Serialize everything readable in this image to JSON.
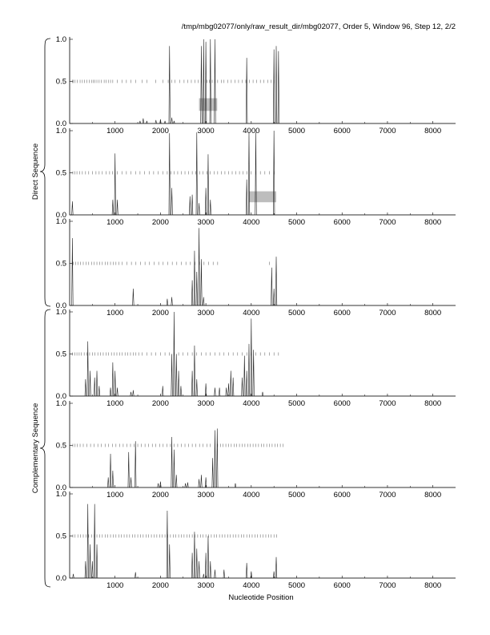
{
  "figure": {
    "header": "/tmp/mbg02077/only/raw_result_dir/mbg02077, Order 5, Window 96, Step 12, 2/2",
    "group_labels": [
      "Direct Sequence",
      "Complementary Sequence"
    ],
    "xlabel": "Nucleotide Position"
  },
  "chart_data": {
    "type": "line",
    "xlabel": "Nucleotide Position",
    "xlim": [
      0,
      8500
    ],
    "ylim": [
      0,
      1.0
    ],
    "xticks": [
      1000,
      2000,
      3000,
      4000,
      5000,
      6000,
      7000,
      8000
    ],
    "yticks": [
      0.0,
      0.5,
      1.0
    ],
    "ytick_labels": [
      "0.0",
      "0.5",
      "1.0"
    ],
    "grid": false,
    "panels": [
      {
        "group": "Direct Sequence",
        "peaks": [
          [
            1550,
            0.03
          ],
          [
            1620,
            0.06
          ],
          [
            1700,
            0.03
          ],
          [
            1900,
            0.04
          ],
          [
            2000,
            0.05
          ],
          [
            2100,
            0.03
          ],
          [
            2200,
            0.92
          ],
          [
            2250,
            0.07
          ],
          [
            2300,
            0.03
          ],
          [
            2900,
            0.92
          ],
          [
            2950,
            1.0
          ],
          [
            3000,
            0.97
          ],
          [
            3100,
            1.0
          ],
          [
            3200,
            1.0
          ],
          [
            3900,
            0.78
          ],
          [
            4500,
            0.88
          ],
          [
            4550,
            0.92
          ],
          [
            4600,
            0.86
          ]
        ],
        "ticks": [
          60,
          80,
          120,
          170,
          230,
          280,
          330,
          380,
          430,
          480,
          520,
          560,
          600,
          650,
          700,
          760,
          800,
          850,
          900,
          950,
          1050,
          1150,
          1250,
          1350,
          1450,
          1600,
          1700,
          1900,
          2050,
          2170,
          2250,
          2320,
          2420,
          2520,
          2600,
          2680,
          2760,
          2830,
          2900,
          2960,
          3020,
          3080,
          3140,
          3200,
          3260,
          3340,
          3400,
          3480,
          3560,
          3640,
          3720,
          3800,
          3880,
          3960,
          4040,
          4120,
          4200,
          4280,
          4360,
          4440,
          4500
        ],
        "shaded": [
          2850,
          3250,
          0.15,
          0.3
        ]
      },
      {
        "group": "Direct Sequence",
        "peaks": [
          [
            60,
            0.16
          ],
          [
            950,
            0.18
          ],
          [
            1000,
            0.73
          ],
          [
            1050,
            0.18
          ],
          [
            2200,
            0.97
          ],
          [
            2250,
            0.32
          ],
          [
            2650,
            0.22
          ],
          [
            2700,
            0.24
          ],
          [
            2800,
            0.98
          ],
          [
            2850,
            0.14
          ],
          [
            3000,
            0.32
          ],
          [
            3050,
            0.72
          ],
          [
            3100,
            0.18
          ],
          [
            3900,
            0.42
          ],
          [
            3950,
            0.98
          ],
          [
            4100,
            0.98
          ],
          [
            4500,
            1.0
          ]
        ],
        "ticks": [
          70,
          110,
          160,
          220,
          280,
          350,
          420,
          500,
          580,
          650,
          720,
          800,
          880,
          940,
          1050,
          1150,
          1250,
          1350,
          1450,
          1550,
          1650,
          1750,
          1850,
          1950,
          2050,
          2150,
          2230,
          2300,
          2380,
          2460,
          2540,
          2620,
          2700,
          2780,
          2860,
          2940,
          3020,
          3100,
          3180,
          3260,
          3340,
          3420,
          3500,
          3580,
          3660,
          3740,
          3820,
          3900,
          4000,
          4100,
          4200,
          4300,
          4400,
          4500
        ],
        "shaded": [
          3950,
          4550,
          0.15,
          0.28
        ]
      },
      {
        "group": "Direct Sequence",
        "peaks": [
          [
            60,
            0.8
          ],
          [
            1400,
            0.2
          ],
          [
            2150,
            0.08
          ],
          [
            2250,
            0.1
          ],
          [
            2700,
            0.3
          ],
          [
            2750,
            0.65
          ],
          [
            2800,
            0.4
          ],
          [
            2850,
            0.92
          ],
          [
            2900,
            0.55
          ],
          [
            2950,
            0.1
          ],
          [
            4450,
            0.45
          ],
          [
            4500,
            0.2
          ],
          [
            4550,
            0.58
          ]
        ],
        "ticks": [
          80,
          130,
          180,
          240,
          300,
          360,
          420,
          480,
          540,
          600,
          660,
          720,
          780,
          840,
          900,
          960,
          1020,
          1080,
          1160,
          1260,
          1360,
          1460,
          1560,
          1660,
          1760,
          1860,
          1960,
          2060,
          2160,
          2260,
          2360,
          2460,
          2560,
          2660,
          2760,
          2860,
          2960,
          3060,
          3160,
          3260,
          4400
        ]
      },
      {
        "group": "Complementary Sequence",
        "peaks": [
          [
            350,
            0.2
          ],
          [
            400,
            0.65
          ],
          [
            450,
            0.3
          ],
          [
            550,
            0.22
          ],
          [
            600,
            0.3
          ],
          [
            650,
            0.12
          ],
          [
            900,
            0.1
          ],
          [
            950,
            0.4
          ],
          [
            1000,
            0.3
          ],
          [
            1050,
            0.1
          ],
          [
            1350,
            0.05
          ],
          [
            1400,
            0.07
          ],
          [
            2050,
            0.12
          ],
          [
            2250,
            0.5
          ],
          [
            2300,
            1.0
          ],
          [
            2350,
            0.5
          ],
          [
            2400,
            0.3
          ],
          [
            2450,
            0.12
          ],
          [
            2700,
            0.3
          ],
          [
            2750,
            0.6
          ],
          [
            2800,
            0.2
          ],
          [
            3000,
            0.15
          ],
          [
            3200,
            0.1
          ],
          [
            3300,
            0.1
          ],
          [
            3450,
            0.1
          ],
          [
            3500,
            0.15
          ],
          [
            3550,
            0.3
          ],
          [
            3600,
            0.22
          ],
          [
            3800,
            0.22
          ],
          [
            3850,
            0.48
          ],
          [
            3900,
            0.3
          ],
          [
            3950,
            0.62
          ],
          [
            4000,
            0.92
          ],
          [
            4050,
            0.55
          ],
          [
            4250,
            0.05
          ]
        ],
        "ticks": [
          60,
          110,
          160,
          210,
          260,
          320,
          380,
          440,
          500,
          560,
          620,
          680,
          740,
          800,
          860,
          920,
          980,
          1040,
          1100,
          1160,
          1220,
          1280,
          1340,
          1400,
          1460,
          1520,
          1600,
          1700,
          1800,
          1900,
          2000,
          2100,
          2200,
          2300,
          2400,
          2500,
          2600,
          2700,
          2800,
          2900,
          3000,
          3100,
          3200,
          3300,
          3400,
          3500,
          3600,
          3700,
          3800,
          3900,
          4000,
          4100,
          4200,
          4300,
          4400,
          4500,
          4600
        ]
      },
      {
        "group": "Complementary Sequence",
        "peaks": [
          [
            850,
            0.12
          ],
          [
            900,
            0.4
          ],
          [
            950,
            0.2
          ],
          [
            1300,
            0.42
          ],
          [
            1350,
            0.12
          ],
          [
            1450,
            0.55
          ],
          [
            1950,
            0.05
          ],
          [
            2000,
            0.07
          ],
          [
            2250,
            0.6
          ],
          [
            2300,
            0.45
          ],
          [
            2350,
            0.15
          ],
          [
            2550,
            0.05
          ],
          [
            2600,
            0.06
          ],
          [
            2850,
            0.1
          ],
          [
            2900,
            0.15
          ],
          [
            3000,
            0.12
          ],
          [
            3150,
            0.35
          ],
          [
            3200,
            0.68
          ],
          [
            3250,
            0.7
          ],
          [
            3650,
            0.05
          ]
        ],
        "ticks": [
          70,
          120,
          170,
          230,
          300,
          380,
          460,
          540,
          620,
          700,
          780,
          860,
          940,
          1020,
          1100,
          1180,
          1260,
          1340,
          1420,
          1500,
          1580,
          1660,
          1740,
          1820,
          1900,
          1980,
          2060,
          2140,
          2220,
          2300,
          2380,
          2460,
          2540,
          2620,
          2700,
          2780,
          2860,
          2940,
          3020,
          3100,
          3200,
          3260,
          3320,
          3380,
          3440,
          3500,
          3560,
          3620,
          3680,
          3740,
          3800,
          3860,
          3920,
          3980,
          4040,
          4100,
          4160,
          4220,
          4280,
          4340,
          4400,
          4460,
          4520,
          4580,
          4640,
          4700
        ]
      },
      {
        "group": "Complementary Sequence",
        "peaks": [
          [
            80,
            0.05
          ],
          [
            350,
            0.2
          ],
          [
            400,
            0.88
          ],
          [
            450,
            0.4
          ],
          [
            500,
            0.2
          ],
          [
            550,
            0.88
          ],
          [
            600,
            0.4
          ],
          [
            1450,
            0.07
          ],
          [
            2150,
            0.8
          ],
          [
            2200,
            0.4
          ],
          [
            2700,
            0.3
          ],
          [
            2750,
            0.55
          ],
          [
            2800,
            0.35
          ],
          [
            2850,
            0.2
          ],
          [
            2950,
            0.05
          ],
          [
            3000,
            0.3
          ],
          [
            3050,
            0.5
          ],
          [
            3100,
            0.2
          ],
          [
            3200,
            0.1
          ],
          [
            3400,
            0.1
          ],
          [
            3900,
            0.18
          ],
          [
            4000,
            0.08
          ],
          [
            4500,
            0.08
          ],
          [
            4550,
            0.25
          ]
        ],
        "ticks": [
          70,
          120,
          180,
          240,
          300,
          360,
          420,
          480,
          540,
          600,
          660,
          720,
          780,
          840,
          900,
          960,
          1020,
          1080,
          1140,
          1200,
          1260,
          1320,
          1380,
          1440,
          1500,
          1560,
          1620,
          1680,
          1740,
          1800,
          1860,
          1920,
          1980,
          2040,
          2100,
          2160,
          2220,
          2280,
          2340,
          2400,
          2460,
          2520,
          2580,
          2640,
          2700,
          2760,
          2820,
          2880,
          2940,
          3000,
          3060,
          3120,
          3180,
          3240,
          3300,
          3360,
          3420,
          3480,
          3540,
          3600,
          3660,
          3720,
          3780,
          3840,
          3900,
          3960,
          4020,
          4080,
          4140,
          4200,
          4260,
          4320,
          4380,
          4440,
          4500,
          4560
        ]
      }
    ]
  }
}
